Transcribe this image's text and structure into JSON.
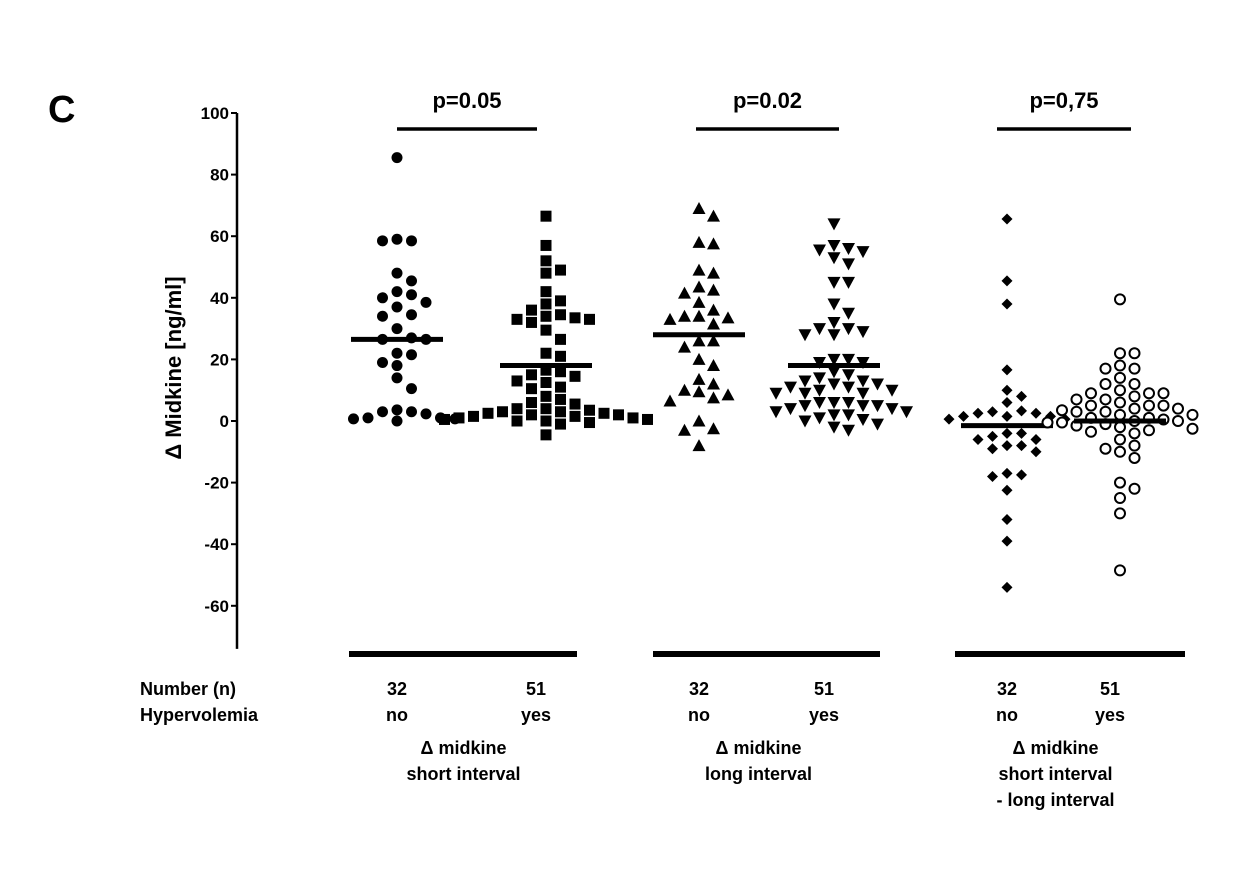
{
  "panel_letter": "C",
  "chart_data": {
    "type": "scatter",
    "title": "",
    "ylabel": "Δ Midkine [ng/ml]",
    "xlabel": "",
    "ylim": [
      -74,
      100
    ],
    "yticks": [
      100,
      80,
      60,
      40,
      20,
      0,
      -20,
      -40,
      -60
    ],
    "grid": false,
    "legend": "none",
    "row_labels": {
      "number": "Number (n)",
      "hypervolemia": "Hypervolemia"
    },
    "comparisons": [
      {
        "p_value": "p=0.05",
        "group_label": [
          "Δ midkine",
          "short interval"
        ],
        "groups": [
          {
            "name": "no",
            "n": "32",
            "marker": "filled-circle",
            "median": 26.5,
            "values": [
              85.5,
              58.5,
              58.5,
              59,
              48,
              45.5,
              42,
              40,
              38.5,
              41,
              37,
              34,
              34.5,
              30,
              26.5,
              26.5,
              27,
              21.5,
              18,
              19,
              22,
              14,
              10.5,
              3.6,
              3,
              1,
              0.7,
              0,
              0.7,
              1,
              2.3,
              3
            ]
          },
          {
            "name": "yes",
            "n": "51",
            "marker": "filled-square",
            "median": 18,
            "values": [
              66.5,
              57,
              52,
              48,
              49,
              42,
              39,
              38,
              36,
              34,
              33,
              32,
              33,
              33.5,
              34.5,
              29.5,
              26.5,
              22,
              21,
              16,
              14.5,
              13,
              11,
              12.5,
              15,
              16.5,
              10.5,
              7,
              5.5,
              6,
              8,
              4,
              3.5,
              3,
              2.5,
              2,
              2,
              1.5,
              1,
              1,
              0.5,
              0.5,
              0,
              0,
              -0.5,
              1.5,
              2.5,
              3,
              4,
              -1,
              -4.5
            ]
          }
        ]
      },
      {
        "p_value": "p=0.02",
        "group_label": [
          "Δ midkine",
          "long interval"
        ],
        "groups": [
          {
            "name": "no",
            "n": "32",
            "marker": "filled-triangle-up",
            "median": 28,
            "values": [
              69,
              66.5,
              57.5,
              58,
              49,
              48,
              43.5,
              41.5,
              42.5,
              38.5,
              36,
              34,
              33.5,
              31.5,
              33,
              34,
              26,
              26,
              24,
              20,
              18,
              13.5,
              12,
              9.5,
              8.5,
              6.5,
              7.5,
              10,
              0,
              -3,
              -2.5,
              -8
            ]
          },
          {
            "name": "yes",
            "n": "51",
            "marker": "filled-triangle-down",
            "median": 18,
            "values": [
              64,
              57,
              56,
              55.5,
              55,
              53,
              51,
              45,
              45,
              38,
              35,
              32,
              30,
              29,
              28,
              28,
              30,
              20,
              20,
              19,
              19,
              16,
              12,
              11,
              15,
              14,
              10,
              10,
              9,
              9,
              9,
              11,
              13,
              13,
              12,
              6,
              5,
              5,
              4,
              4,
              3,
              3,
              6,
              6,
              5,
              1,
              0,
              2,
              2,
              0.5,
              -2,
              -3,
              -1
            ]
          }
        ]
      },
      {
        "p_value": "p=0,75",
        "group_label": [
          "Δ midkine",
          "short interval",
          "- long interval"
        ],
        "groups": [
          {
            "name": "no",
            "n": "32",
            "marker": "filled-diamond",
            "median": -1.5,
            "values": [
              65.6,
              45.5,
              38,
              16.6,
              10,
              8,
              6,
              3,
              2.5,
              1.5,
              0.6,
              0.6,
              1.5,
              1.5,
              2.5,
              3.3,
              -4,
              -5,
              -4,
              -6,
              -8,
              -9,
              -10,
              -8,
              -6,
              -17.5,
              -18,
              -17,
              -22.5,
              -32,
              -39,
              -54
            ]
          },
          {
            "name": "yes",
            "n": "51",
            "marker": "open-circle",
            "median": 0,
            "values": [
              39.5,
              22,
              22,
              17,
              17,
              18,
              14,
              12,
              12,
              10,
              9,
              7,
              7,
              8,
              9,
              9,
              5,
              5,
              4,
              3,
              3,
              3.5,
              4,
              5,
              6,
              2,
              2,
              1,
              0.5,
              0,
              -0.5,
              -1,
              -1.5,
              -0.5,
              0,
              1,
              -3,
              -3.5,
              -2,
              -2.5,
              -4,
              -6,
              -8,
              -10,
              -9,
              -12,
              -20,
              -22,
              -25,
              -30,
              -48.5
            ]
          }
        ]
      }
    ]
  }
}
